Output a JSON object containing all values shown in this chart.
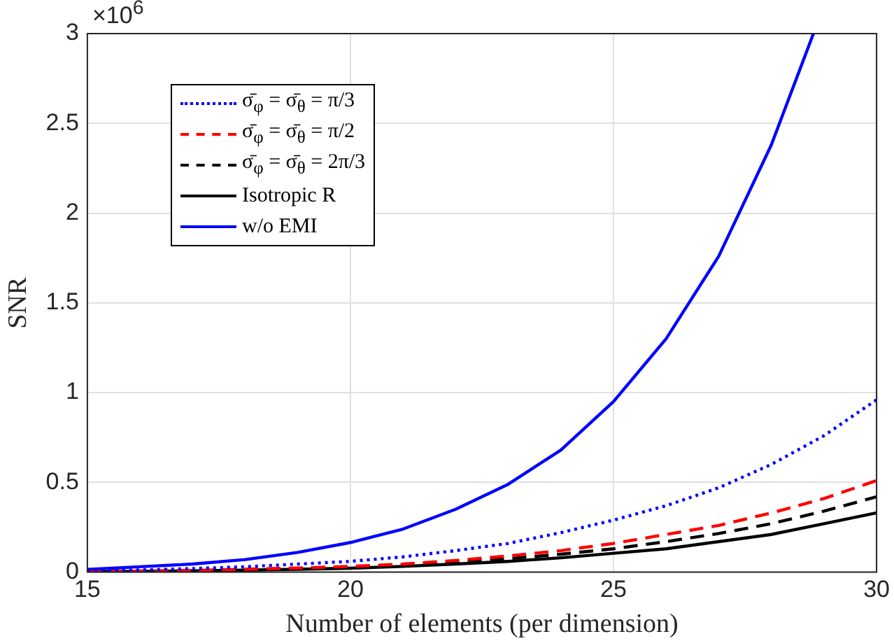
{
  "chart_data": {
    "type": "line",
    "xlabel": "Number of elements (per dimension)",
    "ylabel": "SNR",
    "annotations": [
      "×10$^{6}$"
    ],
    "xlim": [
      15,
      30
    ],
    "xticks": [
      15,
      20,
      25,
      30
    ],
    "ylim": [
      0,
      3
    ],
    "yticks": [
      0,
      0.5,
      1,
      1.5,
      2,
      2.5,
      3
    ],
    "grid": true,
    "legend": "top left",
    "marker": "none",
    "series": [
      {
        "name": "σ̄$_{φ}$ = σ̄$_{θ}$ = π/3",
        "color": "#0000ff",
        "line_style": "dotted",
        "x": [
          15,
          16,
          17,
          18,
          19,
          20,
          21,
          22,
          23,
          24,
          25,
          26,
          27,
          28,
          29,
          30
        ],
        "values": [
          0.005,
          0.012,
          0.02,
          0.03,
          0.045,
          0.06,
          0.085,
          0.12,
          0.16,
          0.22,
          0.29,
          0.37,
          0.47,
          0.6,
          0.76,
          0.96
        ]
      },
      {
        "name": "σ̄$_{φ}$ = σ̄$_{θ}$ = π/2",
        "color": "#ff0000",
        "line_style": "dashed",
        "x": [
          15,
          16,
          17,
          18,
          19,
          20,
          21,
          22,
          23,
          24,
          25,
          26,
          27,
          28,
          29,
          30
        ],
        "values": [
          0.003,
          0.006,
          0.01,
          0.016,
          0.023,
          0.032,
          0.045,
          0.065,
          0.09,
          0.12,
          0.16,
          0.21,
          0.26,
          0.33,
          0.41,
          0.51
        ]
      },
      {
        "name": "σ̄$_{φ}$ = σ̄$_{θ}$ = 2π/3",
        "color": "#000000",
        "line_style": "dashed",
        "x": [
          15,
          16,
          17,
          18,
          19,
          20,
          21,
          22,
          23,
          24,
          25,
          26,
          27,
          28,
          29,
          30
        ],
        "values": [
          0.002,
          0.005,
          0.008,
          0.013,
          0.02,
          0.028,
          0.04,
          0.055,
          0.075,
          0.1,
          0.13,
          0.17,
          0.215,
          0.27,
          0.34,
          0.42
        ]
      },
      {
        "name": "Isotropic R",
        "color": "#000000",
        "line_style": "solid",
        "x": [
          15,
          16,
          17,
          18,
          19,
          20,
          21,
          22,
          23,
          24,
          25,
          26,
          27,
          28,
          29,
          30
        ],
        "values": [
          0.002,
          0.004,
          0.007,
          0.011,
          0.016,
          0.022,
          0.032,
          0.045,
          0.06,
          0.08,
          0.105,
          0.13,
          0.17,
          0.21,
          0.27,
          0.33
        ]
      },
      {
        "name": "w/o EMI",
        "color": "#0000ff",
        "line_style": "solid",
        "x": [
          15,
          16,
          17,
          18,
          19,
          20,
          21,
          22,
          23,
          24,
          25,
          26,
          27,
          28,
          28.8
        ],
        "values": [
          0.015,
          0.03,
          0.045,
          0.07,
          0.11,
          0.165,
          0.24,
          0.35,
          0.49,
          0.68,
          0.95,
          1.3,
          1.76,
          2.38,
          3.0
        ]
      }
    ]
  }
}
